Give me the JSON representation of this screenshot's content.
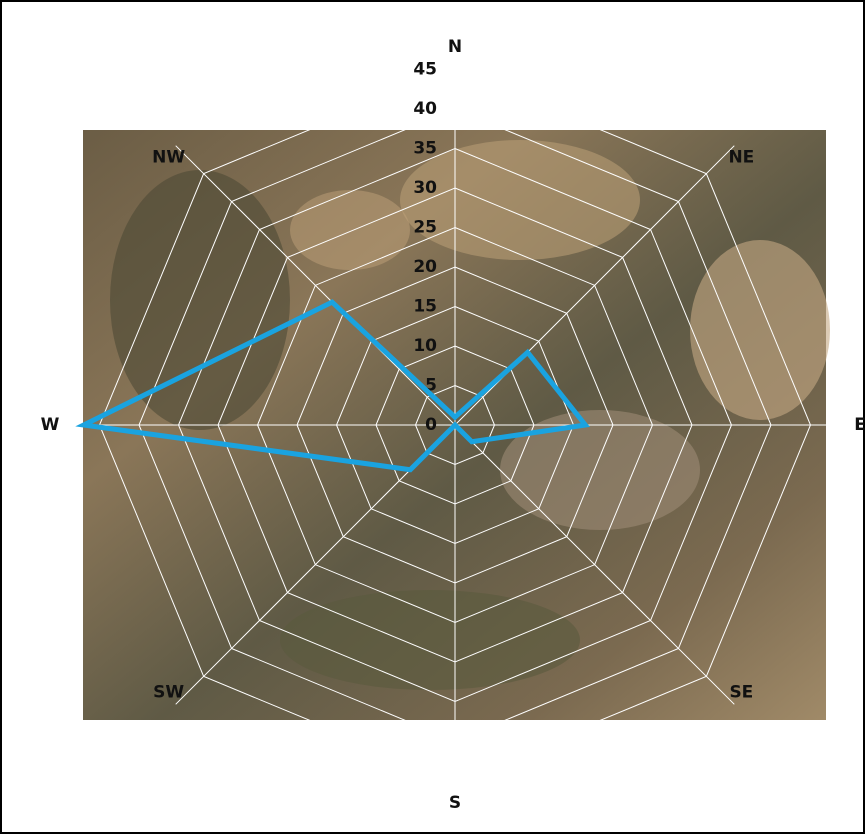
{
  "chart_data": {
    "type": "radar",
    "categories": [
      "N",
      "NE",
      "E",
      "SE",
      "S",
      "SW",
      "W",
      "NW"
    ],
    "series": [
      {
        "color": "#1aa3e0",
        "values": [
          1,
          13,
          16.5,
          3,
          0,
          8,
          47,
          22
        ]
      }
    ],
    "ylim": [
      0,
      50
    ],
    "yticks": [
      0,
      5,
      10,
      15,
      20,
      25,
      30,
      35,
      40,
      45
    ],
    "grid": true
  }
}
